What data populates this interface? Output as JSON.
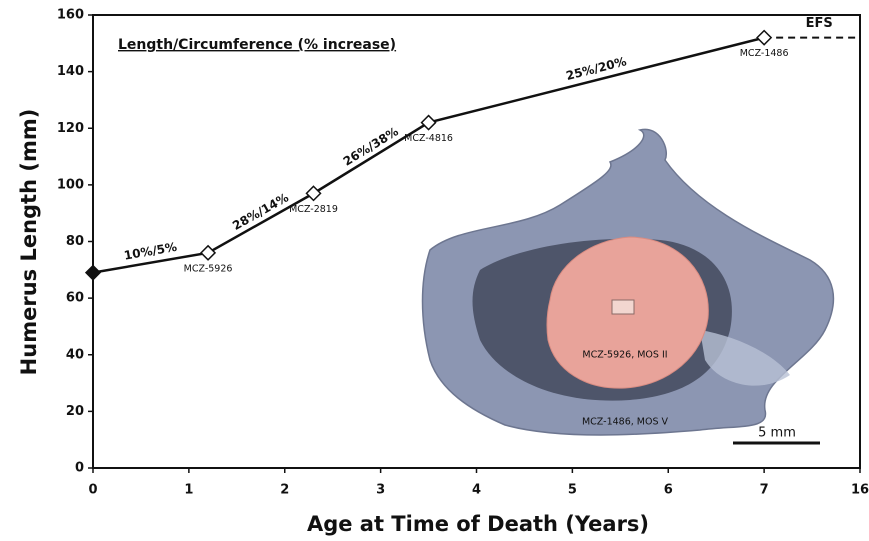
{
  "chart_data": {
    "type": "line",
    "xlabel": "Age at Time of Death  (Years)",
    "ylabel": "Humerus Length (mm)",
    "annotation": "Length/Circumference (% increase)",
    "x": [
      0,
      1.2,
      2.3,
      3.5,
      7
    ],
    "xlim": [
      0,
      16
    ],
    "xticks": [
      0,
      1,
      2,
      3,
      4,
      5,
      6,
      7,
      16
    ],
    "ylim": [
      0,
      160
    ],
    "yticks": [
      0,
      20,
      40,
      60,
      80,
      100,
      120,
      140,
      160
    ],
    "series": [
      {
        "color": "#111111",
        "values": [
          69,
          76,
          97,
          122,
          152
        ],
        "filled_markers": [
          true,
          false,
          false,
          false,
          false
        ],
        "point_labels": [
          null,
          "MCZ-5926",
          "MCZ-2819",
          "MCZ-4816",
          "MCZ-1486"
        ],
        "segment_labels": [
          "10%/5%",
          "28%/14%",
          "26%/38%",
          "25%/20%"
        ]
      }
    ],
    "efs_label": "EFS",
    "inset": {
      "inner_label": "MCZ-5926, MOS II",
      "outer_label": "MCZ-1486, MOS V",
      "scale_bar": "5 mm"
    }
  }
}
